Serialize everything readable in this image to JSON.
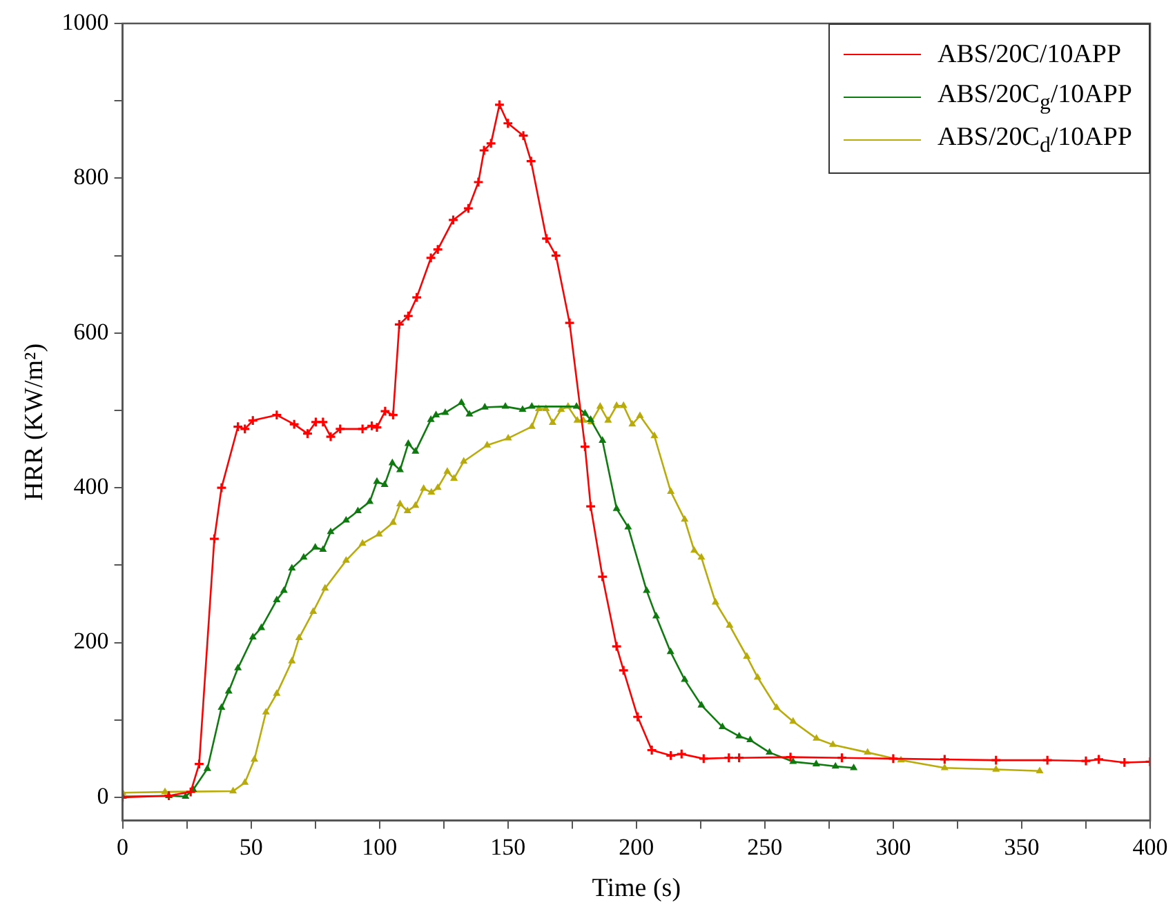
{
  "chart_data": {
    "type": "line",
    "xlabel": "Time (s)",
    "ylabel": "HRR (KW/m²)",
    "xlim": [
      0,
      400
    ],
    "ylim": [
      -30,
      1000
    ],
    "xticks": [
      0,
      {
        "value": 25,
        "label": null
      },
      50,
      {
        "value": 75,
        "label": null
      },
      100,
      {
        "value": 125,
        "label": null
      },
      150,
      {
        "value": 175,
        "label": null
      },
      200,
      {
        "value": 225,
        "label": null
      },
      250,
      {
        "value": 275,
        "label": null
      },
      300,
      {
        "value": 325,
        "label": null
      },
      350,
      {
        "value": 375,
        "label": null
      },
      400
    ],
    "yticks": [
      0,
      {
        "value": 100,
        "label": null
      },
      200,
      {
        "value": 300,
        "label": null
      },
      400,
      {
        "value": 500,
        "label": null
      },
      600,
      {
        "value": 700,
        "label": null
      },
      800,
      {
        "value": 900,
        "label": null
      },
      1000
    ],
    "grid": false,
    "legend": "top right",
    "line_style": "solid",
    "series": [
      {
        "name": "ABS/20C/10APP",
        "color": "#ff0000",
        "marker": "cross",
        "x": [
          0,
          18,
          26.5,
          29.8,
          35.7,
          38.5,
          44.9,
          47.6,
          50.7,
          60,
          66.8,
          72,
          75.2,
          78,
          81,
          84.7,
          93.4,
          97,
          99,
          102.2,
          105.3,
          107.7,
          111.2,
          114.5,
          120,
          122.7,
          128.7,
          134.6,
          138.5,
          140.7,
          143.4,
          146.7,
          150,
          156,
          159,
          165,
          168.7,
          174,
          180,
          182.2,
          186.8,
          192.3,
          195,
          200.5,
          206,
          213.4,
          217.6,
          226.2,
          236,
          240,
          260,
          280,
          300,
          320,
          340,
          360,
          375,
          380,
          390,
          400
        ],
        "values": [
          0,
          2,
          7,
          43,
          334,
          400,
          479,
          476,
          487,
          494,
          482,
          470,
          485,
          485,
          466,
          476,
          476,
          480,
          478,
          499,
          494,
          611,
          622,
          646,
          697,
          708,
          746,
          761,
          795,
          836,
          845,
          895,
          871,
          855,
          822,
          722,
          700,
          613,
          453,
          376,
          285,
          195,
          164,
          104,
          61,
          54,
          56,
          50,
          51,
          51,
          52,
          51,
          50,
          49,
          48,
          48,
          47,
          49,
          45,
          46
        ]
      },
      {
        "name": "ABS/20C$_{g}$/10APP",
        "color": "#0f7a0f",
        "marker": "triangle",
        "x": [
          0,
          18,
          24.5,
          27.5,
          33,
          38.5,
          41.3,
          44.9,
          50.7,
          54,
          60,
          62.8,
          65.9,
          70.5,
          75,
          78,
          81,
          87,
          91.6,
          96.2,
          99,
          102,
          105,
          108,
          111.2,
          114,
          120,
          122,
          125.6,
          131.9,
          135,
          141,
          149,
          155.7,
          159.3,
          176.7,
          180,
          182.2,
          186.8,
          192.3,
          196.8,
          204,
          207.7,
          213.3,
          218.8,
          225.3,
          233.5,
          240,
          244.3,
          251.8,
          261,
          270,
          277.5,
          284.6
        ],
        "values": [
          1,
          2,
          1,
          10,
          37,
          116,
          137,
          167,
          207,
          219,
          255,
          267,
          296,
          310,
          323,
          320,
          343,
          358,
          370,
          382,
          408,
          404,
          432,
          423,
          457,
          447,
          488,
          494,
          497,
          510,
          495,
          504,
          505,
          501,
          505,
          505,
          496,
          488,
          461,
          373,
          349,
          267,
          234,
          188,
          152,
          119,
          91,
          79,
          74,
          58,
          46,
          43,
          40,
          38
        ]
      },
      {
        "name": "ABS/20C$_{d}$/10APP",
        "color": "#b8ab0a",
        "marker": "triangle",
        "x": [
          0,
          16.5,
          43,
          47.6,
          51.3,
          55.8,
          60,
          65.9,
          68.7,
          74.2,
          78.8,
          87,
          93.4,
          99.8,
          105.3,
          108,
          110.9,
          114,
          117.2,
          120.2,
          122.7,
          126.4,
          129,
          132.8,
          141.9,
          150.1,
          159.3,
          162,
          164.8,
          167.4,
          170.7,
          173.4,
          177,
          179.4,
          182.4,
          185.9,
          189,
          192.3,
          195,
          198.4,
          201.4,
          207,
          213.4,
          218.8,
          222.5,
          225.3,
          230.8,
          236.3,
          243,
          247.2,
          254.6,
          261,
          270.1,
          276.5,
          290,
          303,
          320,
          340,
          357
        ],
        "values": [
          6,
          7,
          8,
          19,
          49,
          110,
          134,
          176,
          206,
          240,
          270,
          306,
          328,
          340,
          355,
          379,
          370,
          377,
          399,
          394,
          400,
          421,
          412,
          434,
          455,
          464,
          479,
          502,
          502,
          484,
          501,
          505,
          487,
          487,
          485,
          505,
          487,
          506,
          506,
          482,
          493,
          467,
          395,
          359,
          319,
          310,
          252,
          222,
          182,
          155,
          116,
          98,
          76,
          68,
          58,
          48,
          38,
          36,
          34
        ]
      }
    ]
  }
}
